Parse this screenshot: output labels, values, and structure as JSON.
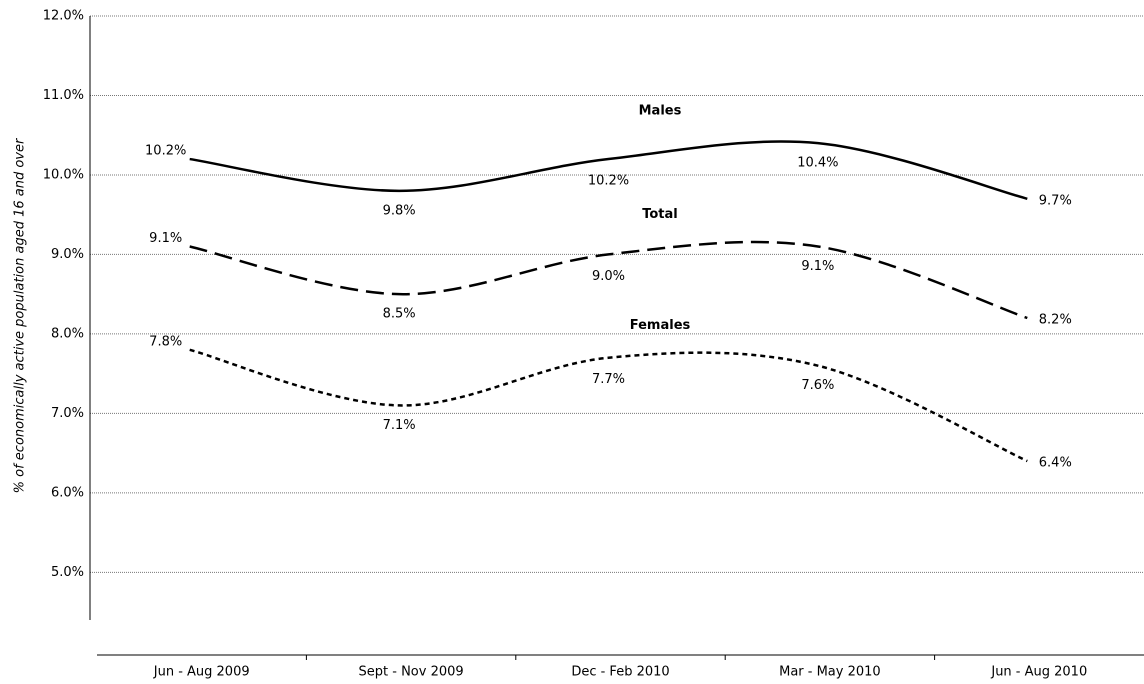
{
  "chart_data": {
    "type": "line",
    "y_label": "% of economically active population aged 16 and over",
    "categories": [
      "Jun - Aug 2009",
      "Sept - Nov 2009",
      "Dec - Feb 2010",
      "Mar - May 2010",
      "Jun - Aug 2010"
    ],
    "series": [
      {
        "name": "Males",
        "color": "#000000",
        "dash": "solid",
        "values": [
          10.2,
          9.8,
          10.2,
          10.4,
          9.7
        ],
        "value_labels": [
          "10.2%",
          "9.8%",
          "10.2%",
          "10.4%",
          "9.7%"
        ]
      },
      {
        "name": "Total",
        "color": "#000000",
        "dash": "long",
        "values": [
          9.1,
          8.5,
          9.0,
          9.1,
          8.2
        ],
        "value_labels": [
          "9.1%",
          "8.5%",
          "9.0%",
          "9.1%",
          "8.2%"
        ]
      },
      {
        "name": "Females",
        "color": "#000000",
        "dash": "short",
        "values": [
          7.8,
          7.1,
          7.7,
          7.6,
          6.4
        ],
        "value_labels": [
          "7.8%",
          "7.1%",
          "7.7%",
          "7.6%",
          "6.4%"
        ]
      }
    ],
    "ylim": [
      4.4,
      12
    ],
    "yticks": [
      {
        "value": 5,
        "label": "5.0%"
      },
      {
        "value": 6,
        "label": "6.0%"
      },
      {
        "value": 7,
        "label": "7.0%"
      },
      {
        "value": 8,
        "label": "8.0%"
      },
      {
        "value": 9,
        "label": "9.0%"
      },
      {
        "value": 10,
        "label": "10.0%"
      },
      {
        "value": 11,
        "label": "11.0%"
      },
      {
        "value": 12,
        "label": "12.0%"
      }
    ],
    "grid": true
  }
}
